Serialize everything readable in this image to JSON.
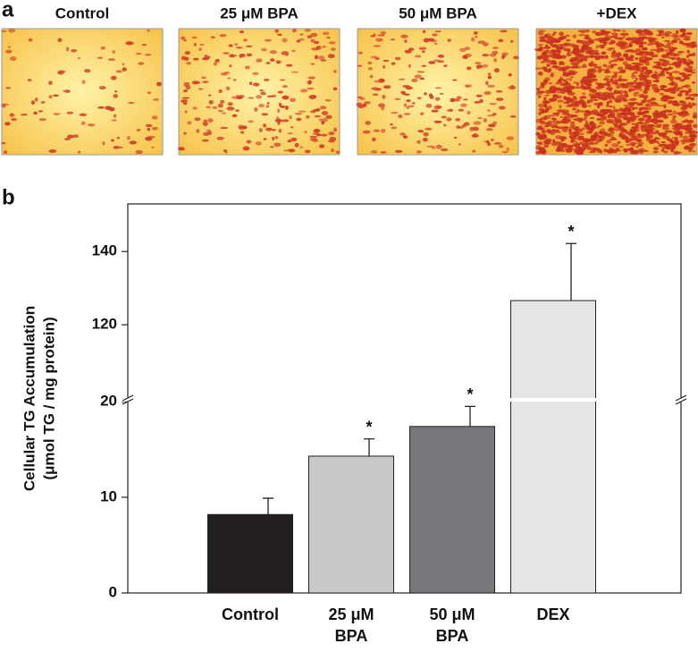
{
  "panels": {
    "a": {
      "letter": "a",
      "image_labels": [
        "Control",
        "25 μM BPA",
        "50 μM BPA",
        "+DEX"
      ]
    }
  },
  "chart_data": {
    "type": "bar",
    "panel_letter": "b",
    "ylabel": [
      "Cellular TG Accumulation",
      "(μmol TG / mg protein)"
    ],
    "categories": [
      "Control",
      "25 μM BPA",
      "50 μM BPA",
      "DEX"
    ],
    "values": [
      8.2,
      14.3,
      17.4,
      126.6
    ],
    "errors": [
      1.7,
      1.8,
      2.1,
      15.6
    ],
    "significance": [
      null,
      "*",
      "*",
      "*"
    ],
    "colors": [
      "#231f20",
      "#c8c9cb",
      "#77787b",
      "#e4e5e7"
    ],
    "ylim": [
      0,
      153
    ],
    "axis_break": [
      20,
      100
    ],
    "yticks": [
      0,
      10,
      20,
      120,
      140
    ]
  }
}
